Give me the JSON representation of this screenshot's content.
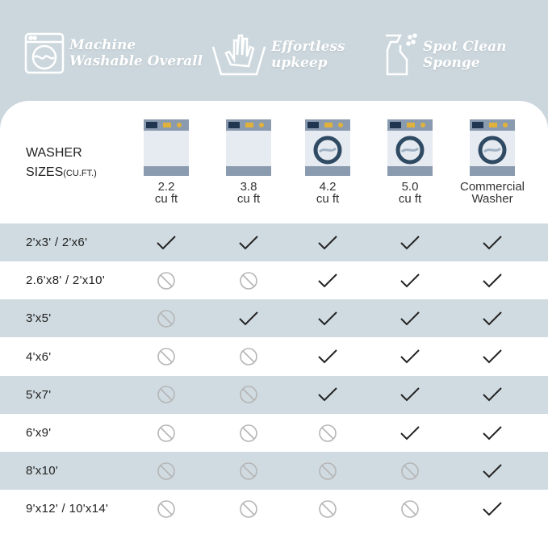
{
  "features": [
    {
      "icon": "washing-machine-icon",
      "lines": [
        "Machine",
        "Washable Overall"
      ]
    },
    {
      "icon": "hand-wash-icon",
      "lines": [
        "Effortless",
        "upkeep"
      ]
    },
    {
      "icon": "spray-bottle-icon",
      "lines": [
        "Spot Clean",
        "Sponge"
      ]
    }
  ],
  "table": {
    "header": {
      "line1": "WASHER",
      "line2": "SIZES",
      "unit": "(CU.FT.)"
    },
    "columns": [
      {
        "label": "2.2\ncu ft",
        "door": false
      },
      {
        "label": "3.8\ncu ft",
        "door": false
      },
      {
        "label": "4.2\ncu ft",
        "door": true
      },
      {
        "label": "5.0\ncu ft",
        "door": true
      },
      {
        "label": "Commercial\nWasher",
        "door": true
      }
    ],
    "rows": [
      {
        "size": "2'x3'  / 2'x6'",
        "fits": [
          true,
          true,
          true,
          true,
          true
        ]
      },
      {
        "size": "2.6'x8' / 2'x10'",
        "fits": [
          false,
          false,
          true,
          true,
          true
        ]
      },
      {
        "size": "3'x5'",
        "fits": [
          false,
          true,
          true,
          true,
          true
        ]
      },
      {
        "size": "4'x6'",
        "fits": [
          false,
          false,
          true,
          true,
          true
        ]
      },
      {
        "size": "5'x7'",
        "fits": [
          false,
          false,
          true,
          true,
          true
        ]
      },
      {
        "size": "6'x9'",
        "fits": [
          false,
          false,
          false,
          true,
          true
        ]
      },
      {
        "size": "8'x10'",
        "fits": [
          false,
          false,
          false,
          false,
          true
        ]
      },
      {
        "size": "9'x12' / 10'x14'",
        "fits": [
          false,
          false,
          false,
          false,
          true
        ]
      }
    ]
  },
  "colors": {
    "background": "#ccd7dd",
    "row_shade": "#d0dbe1",
    "check": "#222222",
    "no": "#b5b5b5"
  }
}
